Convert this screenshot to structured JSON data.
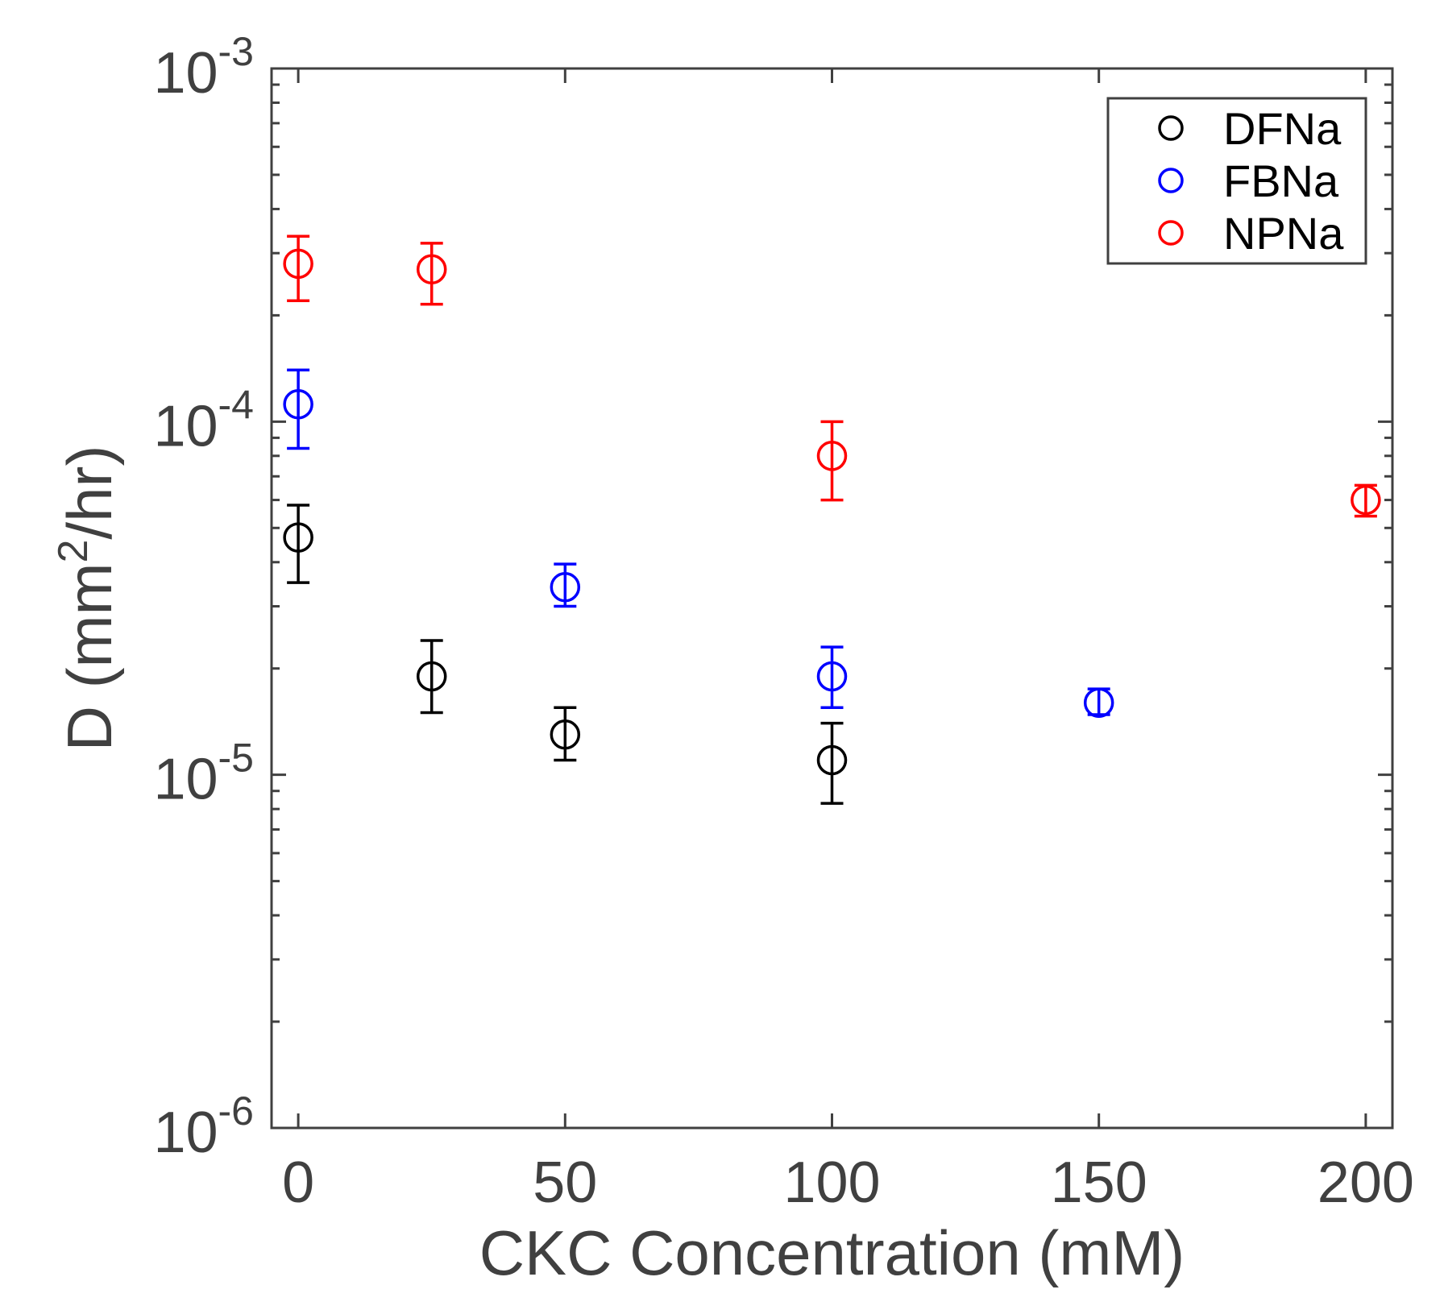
{
  "chart_data": {
    "type": "scatter",
    "title": "",
    "xlabel": "CKC Concentration (mM)",
    "ylabel": {
      "prefix": "D (mm",
      "superscript": "2",
      "suffix": "/hr)"
    },
    "xlim": [
      -5,
      205
    ],
    "ylim": [
      1e-06,
      0.001
    ],
    "yscale": "log",
    "x_ticks": [
      0,
      50,
      100,
      150,
      200
    ],
    "x_tick_labels": [
      "0",
      "50",
      "100",
      "150",
      "200"
    ],
    "y_ticks": [
      {
        "value": 0.001,
        "base": "10",
        "exponent": "-3"
      },
      {
        "value": 0.0001,
        "base": "10",
        "exponent": "-4"
      },
      {
        "value": 1e-05,
        "base": "10",
        "exponent": "-5"
      },
      {
        "value": 1e-06,
        "base": "10",
        "exponent": "-6"
      }
    ],
    "grid": false,
    "legend_position": "top-right",
    "series": [
      {
        "name": "DFNa",
        "color": "#000000",
        "marker": "open-circle",
        "points": [
          {
            "x": 0,
            "y": 4.7e-05,
            "err_low": 3.5e-05,
            "err_high": 5.8e-05
          },
          {
            "x": 25,
            "y": 1.9e-05,
            "err_low": 1.5e-05,
            "err_high": 2.4e-05
          },
          {
            "x": 50,
            "y": 1.3e-05,
            "err_low": 1.1e-05,
            "err_high": 1.55e-05
          },
          {
            "x": 100,
            "y": 1.1e-05,
            "err_low": 8.3e-06,
            "err_high": 1.4e-05
          }
        ]
      },
      {
        "name": "FBNa",
        "color": "#0000ff",
        "marker": "open-circle",
        "points": [
          {
            "x": 0,
            "y": 0.000112,
            "err_low": 8.4e-05,
            "err_high": 0.00014
          },
          {
            "x": 50,
            "y": 3.4e-05,
            "err_low": 3e-05,
            "err_high": 3.95e-05
          },
          {
            "x": 100,
            "y": 1.9e-05,
            "err_low": 1.55e-05,
            "err_high": 2.3e-05
          },
          {
            "x": 150,
            "y": 1.6e-05,
            "err_low": 1.48e-05,
            "err_high": 1.75e-05
          }
        ]
      },
      {
        "name": "NPNa",
        "color": "#ff0000",
        "marker": "open-circle",
        "points": [
          {
            "x": 0,
            "y": 0.00028,
            "err_low": 0.00022,
            "err_high": 0.000335
          },
          {
            "x": 25,
            "y": 0.00027,
            "err_low": 0.000215,
            "err_high": 0.00032
          },
          {
            "x": 100,
            "y": 8e-05,
            "err_low": 6e-05,
            "err_high": 0.0001
          },
          {
            "x": 200,
            "y": 6e-05,
            "err_low": 5.4e-05,
            "err_high": 6.6e-05
          }
        ]
      }
    ]
  }
}
